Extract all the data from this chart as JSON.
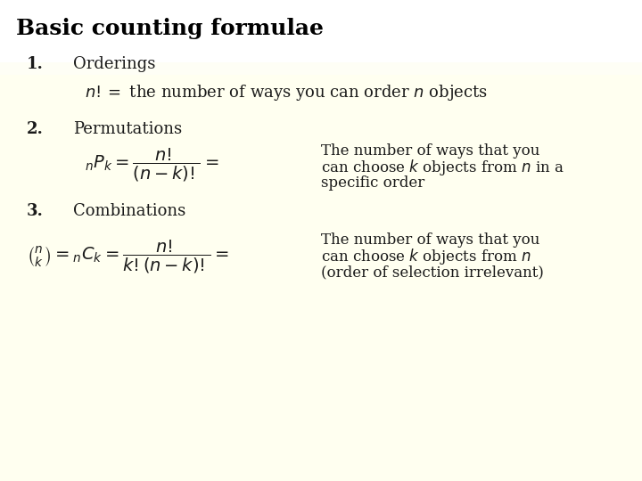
{
  "title": "Basic counting formulae",
  "title_fontsize": 18,
  "background_color": "#FFFFF0",
  "header_color": "#FFFFFF",
  "text_color": "#1a1a1a",
  "section1_label": "1.",
  "section1_title": "Orderings",
  "section2_label": "2.",
  "section2_title": "Permutations",
  "section3_label": "3.",
  "section3_title": "Combinations",
  "label_fontsize": 13,
  "heading_fontsize": 13,
  "formula_fontsize": 13,
  "text_fontsize": 12
}
